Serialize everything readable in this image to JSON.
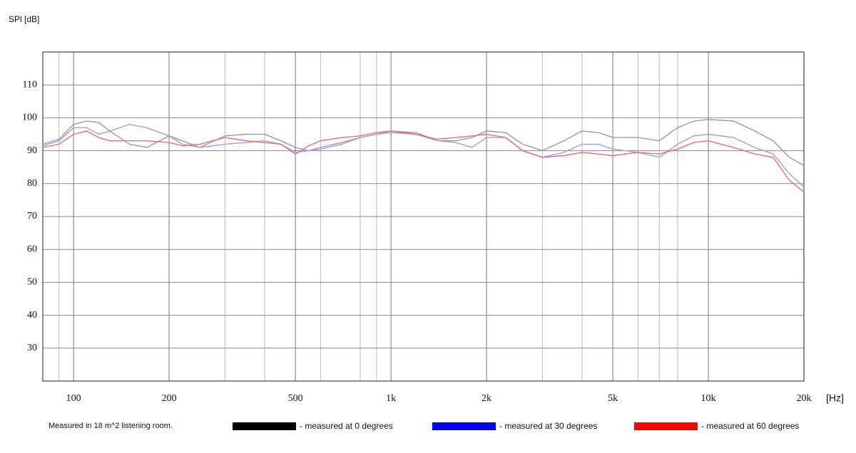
{
  "chart_data": {
    "type": "line",
    "ylabel": "SPl  [dB]",
    "xlabel": "[Hz]",
    "note": "Measured in 18 m^2 listening room.",
    "log_x": true,
    "grid": true,
    "xlim": [
      80,
      20000
    ],
    "ylim": [
      20,
      120
    ],
    "xticks": [
      100,
      200,
      500,
      {
        "value": 1000,
        "label": "1k"
      },
      {
        "value": 2000,
        "label": "2k"
      },
      {
        "value": 5000,
        "label": "5k"
      },
      {
        "value": 10000,
        "label": "10k"
      },
      {
        "value": 20000,
        "label": "20k"
      }
    ],
    "xminor": [
      90,
      300,
      400,
      600,
      800,
      900,
      3000,
      4000,
      6000,
      7000,
      8000
    ],
    "yticks": [
      30,
      40,
      50,
      60,
      70,
      80,
      90,
      100,
      110
    ],
    "x": [
      80,
      90,
      100,
      110,
      120,
      130,
      150,
      170,
      200,
      220,
      250,
      300,
      350,
      400,
      450,
      500,
      550,
      600,
      700,
      800,
      900,
      1000,
      1200,
      1400,
      1600,
      1800,
      2000,
      2300,
      2600,
      3000,
      3500,
      4000,
      4500,
      5000,
      6000,
      7000,
      8000,
      9000,
      10000,
      12000,
      14000,
      16000,
      18000,
      20000
    ],
    "series": [
      {
        "name": "- measured at 0 degrees",
        "color": "#000000",
        "line_color": "#9a9a9a",
        "values": [
          92,
          93.5,
          98,
          99,
          98.6,
          96,
          92,
          91,
          94.5,
          93,
          91,
          94.5,
          95,
          95,
          93,
          91,
          90,
          91,
          92.5,
          94,
          95,
          96,
          95.5,
          93,
          93,
          94,
          96,
          95.5,
          92,
          90,
          93,
          96,
          95.5,
          94,
          94,
          93,
          97,
          99,
          99.5,
          99,
          96,
          93,
          88,
          85.5
        ]
      },
      {
        "name": "- measured at 30 degrees",
        "color": "#0000ff",
        "line_color": "#9c9cf0",
        "values": [
          91.5,
          93,
          97,
          97,
          95,
          96,
          98,
          97,
          94.5,
          92,
          91,
          92,
          92.5,
          93,
          92,
          89.5,
          90,
          90.5,
          92,
          94,
          95,
          95.5,
          95,
          93,
          92.5,
          91,
          94,
          94,
          90,
          88,
          89.5,
          92,
          92,
          90.5,
          89.5,
          88,
          92,
          94.5,
          95,
          94,
          91,
          89,
          83,
          79
        ]
      },
      {
        "name": "- measured at 60 degrees",
        "color": "#ff0000",
        "line_color": "#f06a72",
        "values": [
          91,
          92,
          95,
          96,
          94,
          93,
          93,
          93,
          92.5,
          91.5,
          92,
          94,
          93,
          92.5,
          92,
          89,
          91.5,
          93,
          94,
          94.5,
          95.5,
          96,
          95,
          93.5,
          94,
          94.5,
          95,
          94,
          90,
          88,
          88.5,
          89.5,
          89,
          88.5,
          89.5,
          89,
          90.5,
          92.5,
          93,
          91,
          89,
          88,
          81,
          77.5
        ]
      }
    ]
  }
}
